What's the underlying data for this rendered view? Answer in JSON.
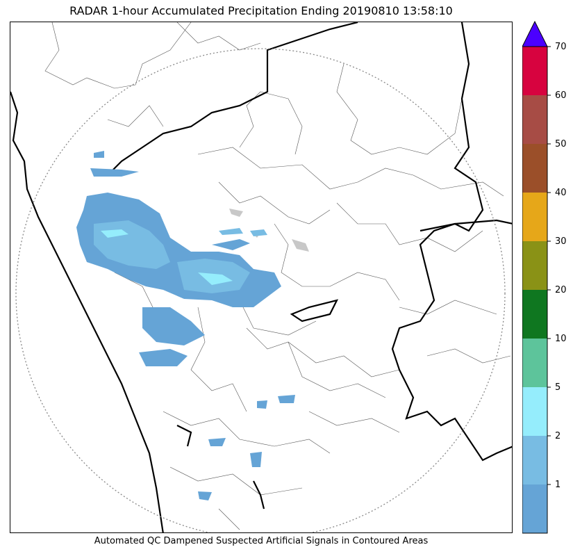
{
  "title": "RADAR 1-hour Accumulated Precipitation Ending 20190810 13:58:10",
  "caption": "Automated QC Dampened Suspected Artificial Signals in Contoured Areas",
  "colorbar": {
    "labels": [
      "1",
      "2",
      "5",
      "10",
      "20",
      "30",
      "40",
      "50",
      "60",
      "70"
    ],
    "bins": [
      {
        "color": "#65a4d6"
      },
      {
        "color": "#78bce3"
      },
      {
        "color": "#95edfc"
      },
      {
        "color": "#5dc49b"
      },
      {
        "color": "#0f7720"
      },
      {
        "color": "#8a9216"
      },
      {
        "color": "#e6a719"
      },
      {
        "color": "#9b4f29"
      },
      {
        "color": "#a74c45"
      },
      {
        "color": "#d7033f"
      }
    ],
    "extend_color": "#4b00ff"
  },
  "map": {
    "range_ring_color": "#888888",
    "coast_color": "#000000",
    "district_color": "#555555",
    "rain_colors": [
      "#65a4d6",
      "#78bce3",
      "#95edfc"
    ],
    "qc_color": "#c8c8c8"
  }
}
